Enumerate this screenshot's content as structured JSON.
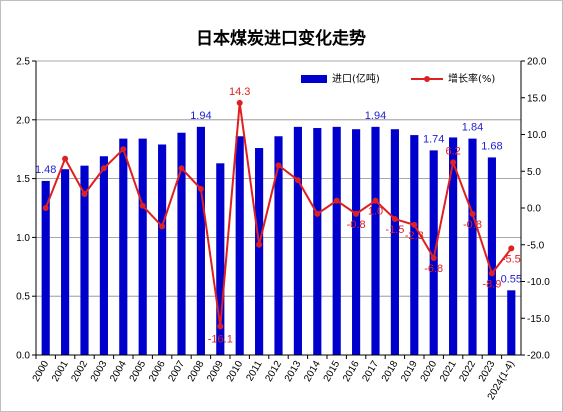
{
  "chart_data": {
    "type": "bar",
    "title": "日本煤炭进口变化走势",
    "categories": [
      "2000",
      "2001",
      "2002",
      "2003",
      "2004",
      "2005",
      "2006",
      "2007",
      "2008",
      "2009",
      "2010",
      "2011",
      "2012",
      "2013",
      "2014",
      "2015",
      "2016",
      "2017",
      "2018",
      "2019",
      "2020",
      "2021",
      "2022",
      "2023",
      "2024(1-4)"
    ],
    "ylim_left": [
      0,
      2.5
    ],
    "left_ticks": [
      "0.0",
      "0.5",
      "1.0",
      "1.5",
      "2.0",
      "2.5"
    ],
    "ylim_right": [
      -20,
      20
    ],
    "right_ticks": [
      "-20.0",
      "-15.0",
      "-10.0",
      "-5.0",
      "0.0",
      "5.0",
      "10.0",
      "15.0",
      "20.0"
    ],
    "grid": true,
    "legend_position": "top-right",
    "series": [
      {
        "name": "进口(亿吨)",
        "type": "bar",
        "axis": "left",
        "color": "#0000cc",
        "values": [
          1.48,
          1.58,
          1.61,
          1.69,
          1.84,
          1.84,
          1.79,
          1.89,
          1.94,
          1.63,
          1.86,
          1.76,
          1.86,
          1.94,
          1.93,
          1.94,
          1.92,
          1.94,
          1.92,
          1.87,
          1.74,
          1.85,
          1.84,
          1.68,
          0.55
        ]
      },
      {
        "name": "增长率(%)",
        "type": "line",
        "axis": "right",
        "color": "#e02020",
        "values": [
          0.0,
          6.7,
          1.9,
          5.4,
          8.0,
          0.3,
          -2.5,
          5.4,
          2.6,
          -16.1,
          14.3,
          -5.0,
          5.8,
          3.8,
          -0.8,
          1.0,
          -0.8,
          1.0,
          -1.5,
          -2.3,
          -6.8,
          6.2,
          -0.8,
          -8.9,
          -5.5
        ]
      }
    ],
    "bar_labels": [
      {
        "index": 0,
        "text": "1.48"
      },
      {
        "index": 8,
        "text": "1.94"
      },
      {
        "index": 17,
        "text": "1.94"
      },
      {
        "index": 20,
        "text": "1.74"
      },
      {
        "index": 22,
        "text": "1.84"
      },
      {
        "index": 23,
        "text": "1.68"
      },
      {
        "index": 24,
        "text": "0.55"
      }
    ],
    "line_labels": [
      {
        "index": 9,
        "text": "-16.1"
      },
      {
        "index": 10,
        "text": "14.3"
      },
      {
        "index": 16,
        "text": "-0.8"
      },
      {
        "index": 17,
        "text": "1.0"
      },
      {
        "index": 18,
        "text": "-1.5"
      },
      {
        "index": 19,
        "text": "-2.3"
      },
      {
        "index": 20,
        "text": "-6.8"
      },
      {
        "index": 21,
        "text": "6.2"
      },
      {
        "index": 22,
        "text": "-0.8"
      },
      {
        "index": 23,
        "text": "-8.9"
      },
      {
        "index": 24,
        "text": "-5.5"
      }
    ]
  }
}
